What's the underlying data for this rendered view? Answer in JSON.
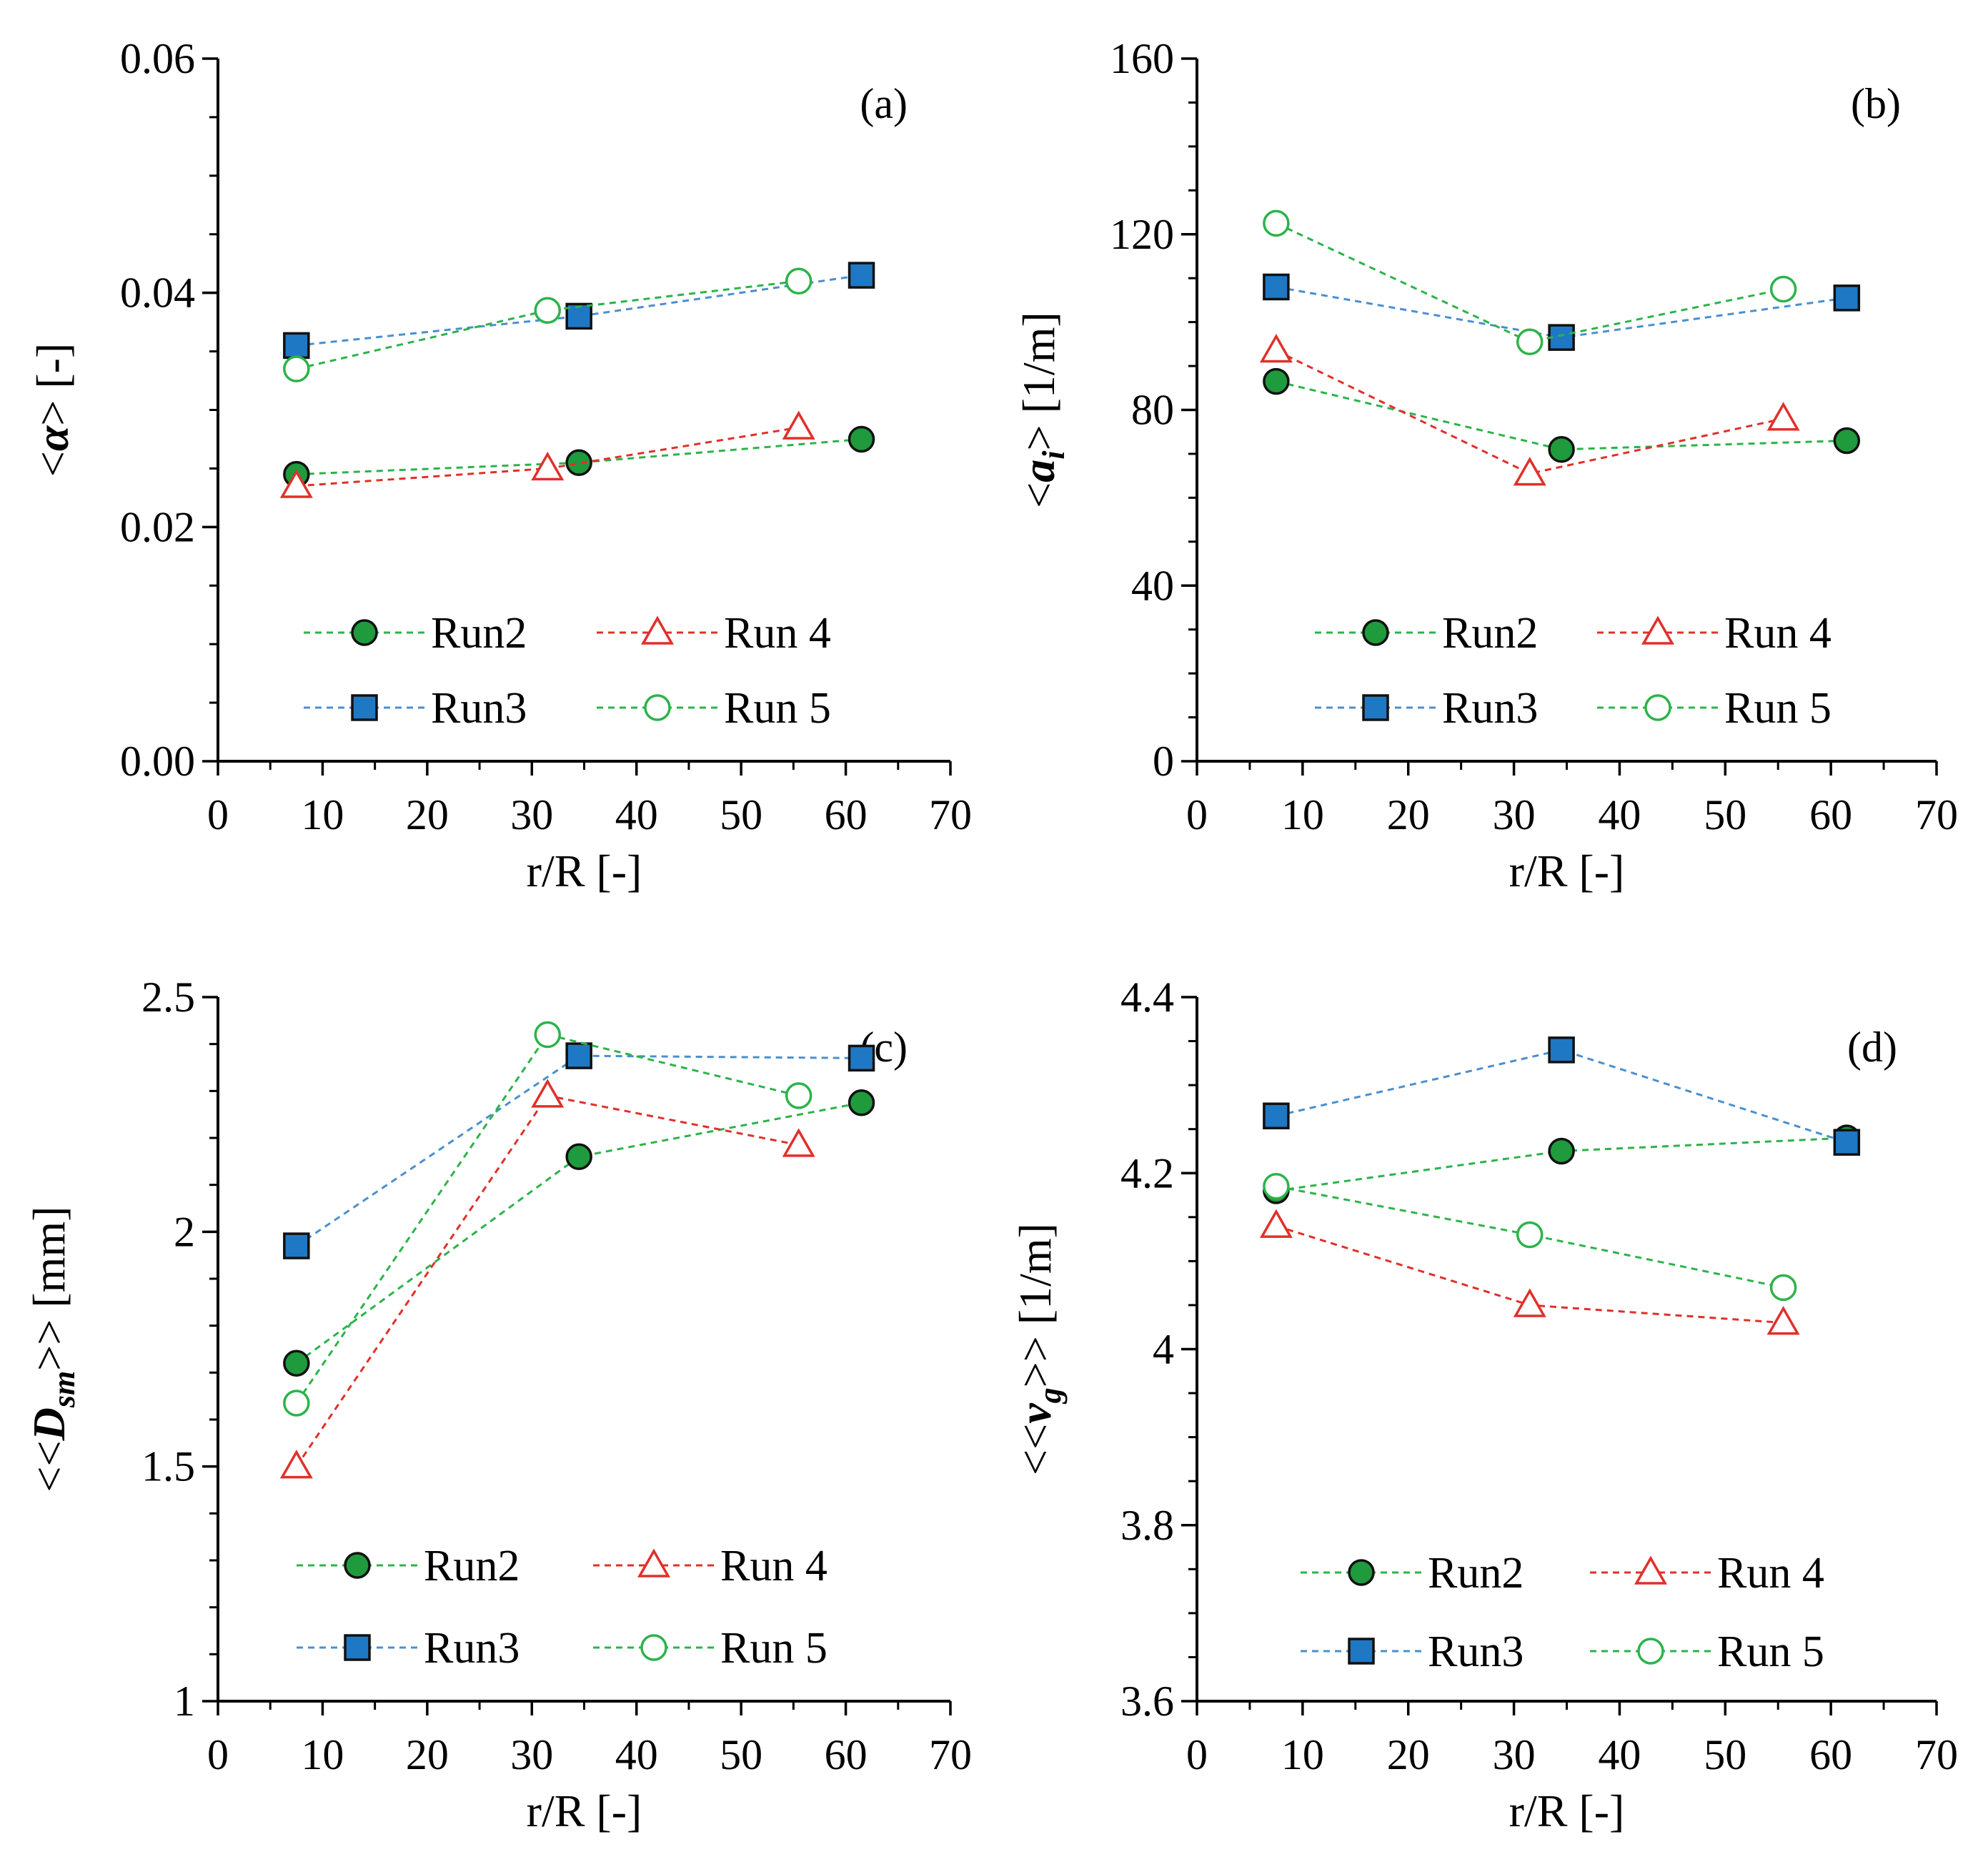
{
  "chart_data": [
    {
      "type": "line",
      "panel": "(a)",
      "xlabel": "r/R [-]",
      "ylabel": {
        "pre": "<",
        "sym": "α",
        "sub": "",
        "post": "> [-]"
      },
      "xlim": [
        0,
        70
      ],
      "xticks": [
        0,
        10,
        20,
        30,
        40,
        50,
        60,
        70
      ],
      "ylim": [
        0,
        0.06
      ],
      "yticks": [
        0,
        0.02,
        0.04,
        0.06
      ],
      "ytick_labels": [
        "0.00",
        "0.02",
        "0.04",
        "0.06"
      ],
      "yminor": 0.005,
      "series": [
        {
          "name": "Run2",
          "key": "run2",
          "x": [
            7.5,
            34.5,
            61.5
          ],
          "values": [
            0.0245,
            0.0255,
            0.0275
          ]
        },
        {
          "name": "Run 4",
          "key": "run4",
          "x": [
            7.5,
            31.5,
            55.5
          ],
          "values": [
            0.0235,
            0.025,
            0.0285
          ]
        },
        {
          "name": "Run3",
          "key": "run3",
          "x": [
            7.5,
            34.5,
            61.5
          ],
          "values": [
            0.0355,
            0.038,
            0.0415
          ]
        },
        {
          "name": "Run 5",
          "key": "run5",
          "x": [
            7.5,
            31.5,
            55.5
          ],
          "values": [
            0.0335,
            0.0385,
            0.041
          ]
        }
      ]
    },
    {
      "type": "line",
      "panel": "(b)",
      "xlabel": "r/R [-]",
      "ylabel": {
        "pre": "<",
        "sym": "a",
        "sub": "i",
        "post": "> [1/m]"
      },
      "xlim": [
        0,
        70
      ],
      "xticks": [
        0,
        10,
        20,
        30,
        40,
        50,
        60,
        70
      ],
      "ylim": [
        0,
        160
      ],
      "yticks": [
        0,
        40,
        80,
        120,
        160
      ],
      "ytick_labels": [
        "0",
        "40",
        "80",
        "120",
        "160"
      ],
      "yminor": 10,
      "series": [
        {
          "name": "Run2",
          "key": "run2",
          "x": [
            7.5,
            34.5,
            61.5
          ],
          "values": [
            86.5,
            71,
            73
          ]
        },
        {
          "name": "Run 4",
          "key": "run4",
          "x": [
            7.5,
            31.5,
            55.5
          ],
          "values": [
            93.5,
            65.5,
            78
          ]
        },
        {
          "name": "Run3",
          "key": "run3",
          "x": [
            7.5,
            34.5,
            61.5
          ],
          "values": [
            108,
            96.5,
            105.5
          ]
        },
        {
          "name": "Run 5",
          "key": "run5",
          "x": [
            7.5,
            31.5,
            55.5
          ],
          "values": [
            122.5,
            95.5,
            107.5
          ]
        }
      ]
    },
    {
      "type": "line",
      "panel": "(c)",
      "xlabel": "r/R [-]",
      "ylabel": {
        "pre": "<<",
        "sym": "D",
        "sub": "sm",
        "post": ">> [mm]"
      },
      "xlim": [
        0,
        70
      ],
      "xticks": [
        0,
        10,
        20,
        30,
        40,
        50,
        60,
        70
      ],
      "ylim": [
        1,
        2.5
      ],
      "yticks": [
        1,
        1.5,
        2,
        2.5
      ],
      "ytick_labels": [
        "1",
        "1.5",
        "2",
        "2.5"
      ],
      "yminor": 0.1,
      "series": [
        {
          "name": "Run2",
          "key": "run2",
          "x": [
            7.5,
            34.5,
            61.5
          ],
          "values": [
            1.72,
            2.16,
            2.275
          ]
        },
        {
          "name": "Run 4",
          "key": "run4",
          "x": [
            7.5,
            31.5,
            55.5
          ],
          "values": [
            1.5,
            2.29,
            2.185
          ]
        },
        {
          "name": "Run3",
          "key": "run3",
          "x": [
            7.5,
            34.5,
            61.5
          ],
          "values": [
            1.97,
            2.375,
            2.37
          ]
        },
        {
          "name": "Run 5",
          "key": "run5",
          "x": [
            7.5,
            31.5,
            55.5
          ],
          "values": [
            1.635,
            2.42,
            2.29
          ]
        }
      ]
    },
    {
      "type": "line",
      "panel": "(d)",
      "xlabel": "r/R [-]",
      "ylabel": {
        "pre": "<<",
        "sym": "v",
        "sub": "g",
        "post": ">> [1/m]"
      },
      "xlim": [
        0,
        70
      ],
      "xticks": [
        0,
        10,
        20,
        30,
        40,
        50,
        60,
        70
      ],
      "ylim": [
        3.6,
        4.4
      ],
      "yticks": [
        3.6,
        3.8,
        4,
        4.2,
        4.4
      ],
      "ytick_labels": [
        "3.6",
        "3.8",
        "4",
        "4.2",
        "4.4"
      ],
      "yminor": 0.05,
      "series": [
        {
          "name": "Run2",
          "key": "run2",
          "x": [
            7.5,
            34.5,
            61.5
          ],
          "values": [
            4.18,
            4.225,
            4.24
          ]
        },
        {
          "name": "Run 4",
          "key": "run4",
          "x": [
            7.5,
            31.5,
            55.5
          ],
          "values": [
            4.14,
            4.05,
            4.03
          ]
        },
        {
          "name": "Run3",
          "key": "run3",
          "x": [
            7.5,
            34.5,
            61.5
          ],
          "values": [
            4.265,
            4.34,
            4.235
          ]
        },
        {
          "name": "Run 5",
          "key": "run5",
          "x": [
            7.5,
            31.5,
            55.5
          ],
          "values": [
            4.185,
            4.13,
            4.07
          ]
        }
      ]
    }
  ],
  "legend_placement": "bottom-right",
  "styles": {
    "run2": {
      "line": "#2cb34a",
      "fill": "#1f9a3c",
      "stroke": "#111111",
      "marker": "circle"
    },
    "run3": {
      "line": "#4a8fd0",
      "fill": "#1f78c4",
      "stroke": "#111111",
      "marker": "square"
    },
    "run4": {
      "line": "#e0302a",
      "fill": "#ffffff",
      "stroke": "#e0302a",
      "marker": "triangle"
    },
    "run5": {
      "line": "#2cb34a",
      "fill": "#ffffff",
      "stroke": "#2cb34a",
      "marker": "circle-open"
    }
  }
}
